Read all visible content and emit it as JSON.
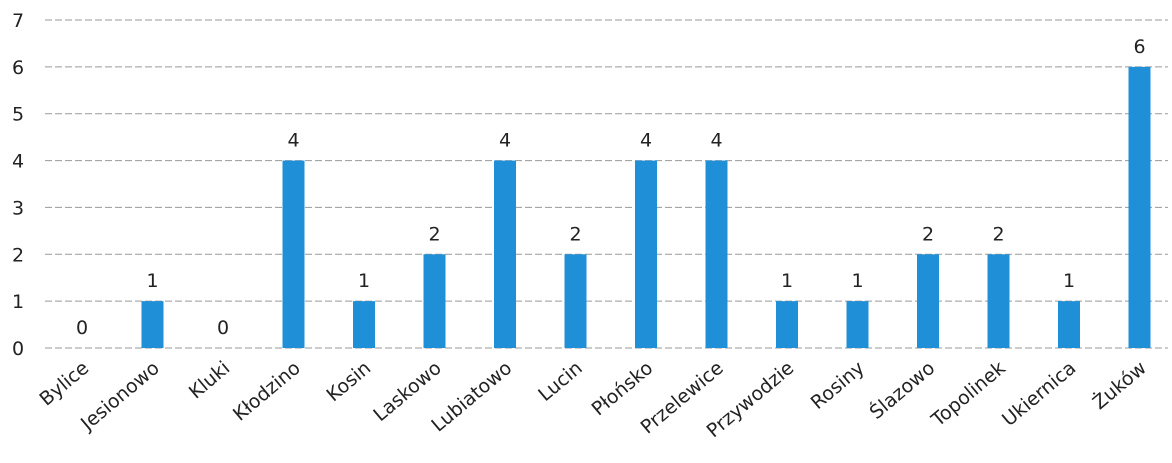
{
  "chart_data": {
    "type": "bar",
    "title": "",
    "xlabel": "",
    "ylabel": "",
    "ylim": [
      0,
      7
    ],
    "yticks": [
      0,
      1,
      2,
      3,
      4,
      5,
      6,
      7
    ],
    "grid": true,
    "legend": "none",
    "bar_color": "#1f90d8",
    "categories": [
      "Bylice",
      "Jesionowo",
      "Kluki",
      "Kłodzino",
      "Kosin",
      "Laskowo",
      "Lubiatowo",
      "Lucin",
      "Płońsko",
      "Przelewice",
      "Przywodzie",
      "Rosiny",
      "Ślazowo",
      "Topolinek",
      "Ukiernica",
      "Żuków"
    ],
    "values": [
      0,
      1,
      0,
      4,
      1,
      2,
      4,
      2,
      4,
      4,
      1,
      1,
      2,
      2,
      1,
      6
    ],
    "data_labels": [
      "0",
      "1",
      "0",
      "4",
      "1",
      "2",
      "4",
      "2",
      "4",
      "4",
      "1",
      "1",
      "2",
      "2",
      "1",
      "6"
    ]
  }
}
